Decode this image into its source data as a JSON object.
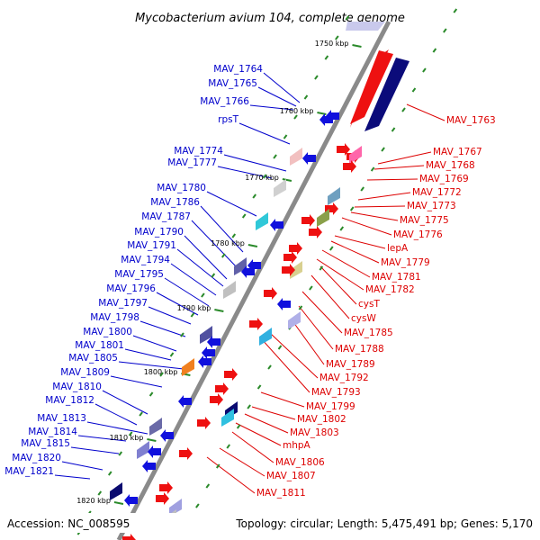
{
  "title": "Mycobacterium avium 104, complete genome",
  "footer": {
    "accession": "Accession: NC_008595",
    "summary": "Topology: circular; Length: 5,475,491 bp; Genes: 5,170"
  },
  "colors": {
    "minus_label": "#0000cc",
    "plus_label": "#dd0000",
    "backbone": "#888888",
    "tick": "#2a8a2a"
  },
  "kbp_ticks": [
    "1750 kbp",
    "1760 kbp",
    "1770 kbp",
    "1780 kbp",
    "1790 kbp",
    "1800 kbp",
    "1810 kbp",
    "1820 kbp"
  ],
  "genes_left": [
    "MAV_1764",
    "MAV_1765",
    "MAV_1766",
    "rpsT",
    "MAV_1774",
    "MAV_1777",
    "MAV_1780",
    "MAV_1786",
    "MAV_1787",
    "MAV_1790",
    "MAV_1791",
    "MAV_1794",
    "MAV_1795",
    "MAV_1796",
    "MAV_1797",
    "MAV_1798",
    "MAV_1800",
    "MAV_1801",
    "MAV_1805",
    "MAV_1809",
    "MAV_1810",
    "MAV_1812",
    "MAV_1813",
    "MAV_1814",
    "MAV_1815",
    "MAV_1820",
    "MAV_1821"
  ],
  "genes_right": [
    "MAV_1763",
    "MAV_1767",
    "MAV_1768",
    "MAV_1769",
    "MAV_1772",
    "MAV_1773",
    "MAV_1775",
    "MAV_1776",
    "lepA",
    "MAV_1779",
    "MAV_1781",
    "MAV_1782",
    "cysT",
    "cysW",
    "MAV_1785",
    "MAV_1788",
    "MAV_1789",
    "MAV_1792",
    "MAV_1793",
    "MAV_1799",
    "MAV_1802",
    "MAV_1803",
    "mhpA",
    "MAV_1806",
    "MAV_1807",
    "MAV_1811"
  ]
}
